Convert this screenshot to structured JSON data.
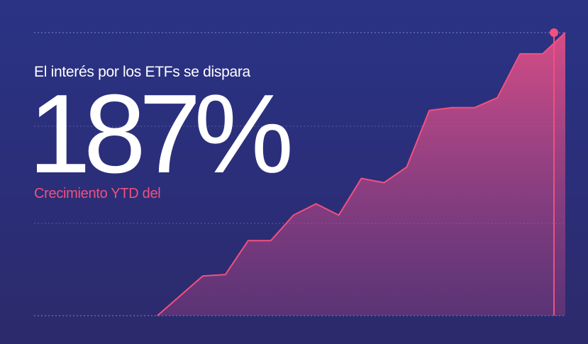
{
  "headline": "El interés por los ETFs se dispara",
  "big_number": "187%",
  "subtitle": "Crecimiento YTD del",
  "colors": {
    "background_top": "#2a3385",
    "background_bottom": "#2c2a6c",
    "accent": "#f2507f",
    "gridline": "#7f86c4",
    "text": "#ffffff"
  },
  "chart_data": {
    "type": "area",
    "title": "",
    "xlabel": "",
    "ylabel": "",
    "grid": true,
    "legend": "none",
    "ylim": [
      0,
      100
    ],
    "x": [
      0,
      1,
      2,
      3,
      4,
      5,
      6,
      7,
      8,
      9,
      10,
      11,
      12,
      13,
      14,
      15,
      16,
      17,
      18
    ],
    "values": [
      0,
      7,
      14,
      14.5,
      26.5,
      26.5,
      35.5,
      39.5,
      35.5,
      48.5,
      47,
      52.5,
      72.5,
      73.5,
      73.5,
      77,
      92.5,
      92.5,
      100
    ],
    "marker": {
      "x": 17.5,
      "y": 100
    }
  }
}
